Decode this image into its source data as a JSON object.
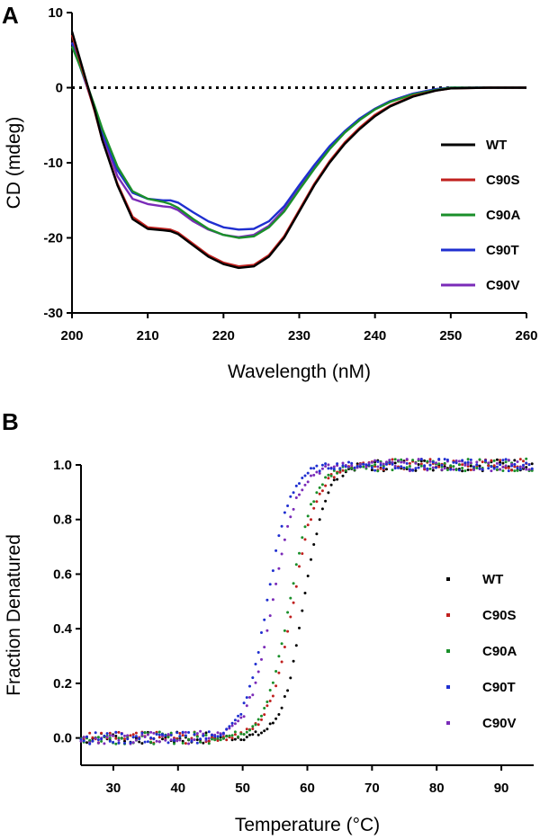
{
  "chart_data": [
    {
      "panel": "A",
      "type": "line",
      "xlabel": "Wavelength (nM)",
      "ylabel": "CD (mdeg)",
      "xlim": [
        200,
        260
      ],
      "ylim": [
        -30,
        10
      ],
      "xticks": [
        200,
        210,
        220,
        230,
        240,
        250,
        260
      ],
      "yticks": [
        10,
        0,
        -10,
        -20,
        -30
      ],
      "reference_line": {
        "y": 0,
        "style": "dotted"
      },
      "legend_position": "right",
      "series": [
        {
          "name": "WT",
          "color": "#000000",
          "x": [
            200,
            201,
            202,
            203,
            204,
            206,
            208,
            210,
            212,
            213,
            214,
            216,
            218,
            220,
            222,
            224,
            226,
            228,
            230,
            232,
            234,
            236,
            238,
            240,
            242,
            245,
            248,
            250,
            255,
            260
          ],
          "values": [
            7.5,
            4.0,
            0.5,
            -3.0,
            -7.0,
            -13.0,
            -17.5,
            -18.8,
            -19.0,
            -19.1,
            -19.5,
            -21.0,
            -22.5,
            -23.5,
            -24.0,
            -23.8,
            -22.5,
            -20.0,
            -16.5,
            -13.0,
            -10.0,
            -7.5,
            -5.5,
            -3.8,
            -2.5,
            -1.2,
            -0.4,
            -0.1,
            0.0,
            0.0
          ]
        },
        {
          "name": "C90S",
          "color": "#c0201e",
          "x": [
            200,
            201,
            202,
            203,
            204,
            206,
            208,
            210,
            212,
            213,
            214,
            216,
            218,
            220,
            222,
            224,
            226,
            228,
            230,
            232,
            234,
            236,
            238,
            240,
            242,
            245,
            248,
            250,
            255,
            260
          ],
          "values": [
            7.0,
            3.7,
            0.2,
            -3.2,
            -7.0,
            -12.8,
            -17.2,
            -18.6,
            -18.8,
            -18.9,
            -19.3,
            -20.8,
            -22.3,
            -23.3,
            -23.8,
            -23.6,
            -22.3,
            -19.8,
            -16.3,
            -12.8,
            -9.8,
            -7.3,
            -5.3,
            -3.6,
            -2.4,
            -1.1,
            -0.4,
            -0.1,
            0.0,
            0.0
          ]
        },
        {
          "name": "C90A",
          "color": "#1a8f2a",
          "x": [
            200,
            201,
            202,
            203,
            204,
            206,
            208,
            210,
            212,
            213,
            214,
            216,
            218,
            220,
            222,
            224,
            226,
            228,
            230,
            232,
            234,
            236,
            238,
            240,
            242,
            245,
            248,
            250,
            255,
            260
          ],
          "values": [
            5.5,
            3.0,
            0.4,
            -2.5,
            -5.5,
            -10.5,
            -13.8,
            -14.8,
            -15.2,
            -15.5,
            -16.0,
            -17.5,
            -18.8,
            -19.6,
            -20.0,
            -19.8,
            -18.6,
            -16.5,
            -13.6,
            -10.8,
            -8.2,
            -6.0,
            -4.3,
            -2.9,
            -1.9,
            -0.9,
            -0.3,
            0.0,
            0.0,
            0.0
          ]
        },
        {
          "name": "C90T",
          "color": "#1f2fd0",
          "x": [
            200,
            201,
            202,
            203,
            204,
            206,
            208,
            210,
            212,
            213,
            214,
            216,
            218,
            220,
            222,
            224,
            226,
            228,
            230,
            232,
            234,
            236,
            238,
            240,
            242,
            245,
            248,
            250,
            255,
            260
          ],
          "values": [
            6.0,
            3.0,
            0.1,
            -3.0,
            -6.0,
            -11.0,
            -14.0,
            -14.8,
            -15.0,
            -15.0,
            -15.3,
            -16.6,
            -17.8,
            -18.6,
            -18.9,
            -18.8,
            -17.8,
            -15.8,
            -13.0,
            -10.3,
            -7.8,
            -5.8,
            -4.1,
            -2.8,
            -1.8,
            -0.8,
            -0.2,
            0.0,
            0.0,
            0.0
          ]
        },
        {
          "name": "C90V",
          "color": "#7a2bb8",
          "x": [
            200,
            201,
            202,
            203,
            204,
            206,
            208,
            210,
            212,
            213,
            214,
            216,
            218,
            220,
            222,
            224,
            226,
            228,
            230,
            232,
            234,
            236,
            238,
            240,
            242,
            245,
            248,
            250,
            255,
            260
          ],
          "values": [
            6.0,
            3.2,
            0.3,
            -3.0,
            -6.3,
            -11.8,
            -14.8,
            -15.5,
            -15.8,
            -15.9,
            -16.3,
            -17.8,
            -18.9,
            -19.6,
            -19.9,
            -19.6,
            -18.4,
            -16.2,
            -13.4,
            -10.6,
            -8.0,
            -5.9,
            -4.2,
            -2.8,
            -1.8,
            -0.8,
            -0.2,
            0.0,
            0.0,
            0.0
          ]
        }
      ]
    },
    {
      "panel": "B",
      "type": "scatter",
      "xlabel": "Temperature (°C)",
      "ylabel": "Fraction Denatured",
      "xlim": [
        25,
        95
      ],
      "ylim": [
        -0.1,
        1.0
      ],
      "xticks": [
        30,
        40,
        50,
        60,
        70,
        80,
        90
      ],
      "yticks": [
        1.0,
        0.8,
        0.6,
        0.4,
        0.2,
        0.0
      ],
      "legend_position": "right",
      "series": [
        {
          "name": "WT",
          "color": "#000000",
          "tm": 59.5,
          "slope": 1.7
        },
        {
          "name": "C90S",
          "color": "#c0201e",
          "tm": 57.8,
          "slope": 1.9
        },
        {
          "name": "C90A",
          "color": "#1a8f2a",
          "tm": 57.3,
          "slope": 1.9
        },
        {
          "name": "C90T",
          "color": "#1f2fd0",
          "tm": 53.8,
          "slope": 1.8
        },
        {
          "name": "C90V",
          "color": "#7a2bb8",
          "tm": 54.6,
          "slope": 1.9
        }
      ]
    }
  ]
}
